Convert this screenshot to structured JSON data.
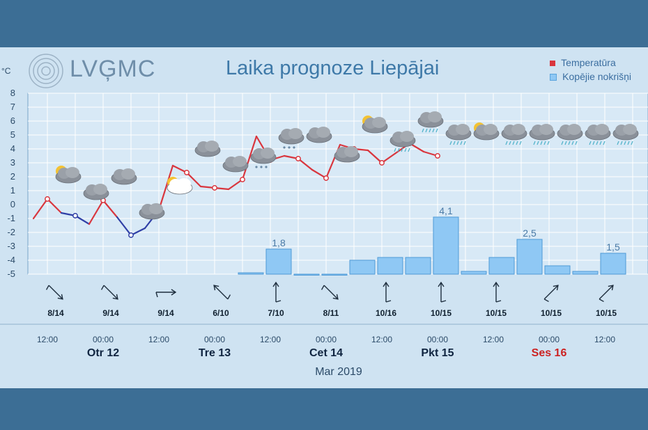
{
  "header": {
    "logo_text": "LVĢMC",
    "title": "Laika prognoze Liepājai",
    "unit": "°C",
    "month": "Mar 2019"
  },
  "legend": {
    "temperature": "Temperatūra",
    "precipitation": "Kopējie nokrišņi"
  },
  "colors": {
    "temp_warm": "#d9363e",
    "temp_cold": "#2f3fa6",
    "precip": "#8fc8f4",
    "weekend": "#cc2222"
  },
  "time_labels": [
    "12:00",
    "00:00",
    "12:00",
    "00:00",
    "12:00",
    "00:00",
    "12:00",
    "00:00",
    "12:00",
    "00:00",
    "12:00"
  ],
  "days": [
    {
      "label": "Otr 12",
      "weekend": false
    },
    {
      "label": "Tre 13",
      "weekend": false
    },
    {
      "label": "Cet 14",
      "weekend": false
    },
    {
      "label": "Pkt 15",
      "weekend": false
    },
    {
      "label": "Ses 16",
      "weekend": true
    }
  ],
  "wind": [
    "8/14",
    "9/14",
    "9/14",
    "6/10",
    "7/10",
    "8/11",
    "10/16",
    "10/15",
    "10/15",
    "10/15",
    "10/15"
  ],
  "wind_dirs": [
    "NW",
    "NW",
    "W",
    "SE",
    "S",
    "NW",
    "S",
    "S",
    "S",
    "SW",
    "SW"
  ],
  "weather_icons": [
    "partly-cloudy-icon",
    "cloudy-icon",
    "cloudy-icon",
    "cloudy-icon",
    "partly-sunny-icon",
    "cloudy-icon",
    "cloudy-icon",
    "sleet-cloud-icon",
    "sleet-cloud-icon",
    "cloudy-icon",
    "cloudy-icon",
    "partly-cloudy-icon",
    "rain-cloud-icon",
    "rain-cloud-icon",
    "rain-cloud-icon",
    "partly-cloudy-icon",
    "rain-cloud-icon",
    "rain-cloud-icon",
    "rain-cloud-icon",
    "rain-cloud-icon",
    "rain-cloud-icon"
  ],
  "chart_data": {
    "type": "line",
    "title": "Laika prognoze Liepājai",
    "ylabel": "°C",
    "ylim": [
      -5,
      8
    ],
    "y_ticks": [
      8,
      7,
      6,
      5,
      4,
      3,
      2,
      1,
      0,
      -1,
      -2,
      -3,
      -4,
      -5
    ],
    "x_step_hours": 3,
    "series": [
      {
        "name": "Temperatūra",
        "values": [
          -1.0,
          0.4,
          -0.6,
          -0.8,
          -1.4,
          0.3,
          -0.9,
          -2.2,
          -1.7,
          -0.4,
          2.8,
          2.3,
          1.3,
          1.2,
          1.1,
          1.8,
          4.9,
          3.2,
          3.5,
          3.3,
          2.5,
          1.9,
          4.3,
          4.0,
          3.9,
          3.0,
          3.7,
          4.4,
          3.8,
          3.5
        ]
      },
      {
        "name": "Kopējie nokrišņi",
        "bars": [
          0.1,
          1.8,
          0,
          0,
          1.0,
          1.2,
          1.2,
          4.1,
          0.2,
          1.2,
          2.5,
          0.6,
          0.2,
          1.5
        ],
        "bar_labels": [
          "",
          "1,8",
          "",
          "",
          "",
          "",
          "",
          "4,1",
          "",
          "",
          "2,5",
          "",
          "",
          "1,5"
        ]
      }
    ]
  }
}
